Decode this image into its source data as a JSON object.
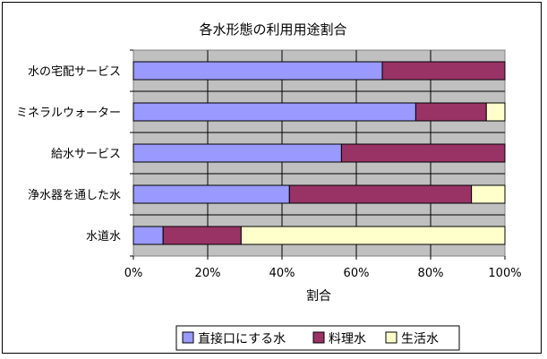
{
  "chart_data": {
    "type": "bar",
    "orientation": "horizontal",
    "stacked": "percent",
    "title": "各水形態の利用用途割合",
    "xlabel": "割合",
    "ylabel": "",
    "categories": [
      "水の宅配サービス",
      "ミネラルウォーター",
      "給水サービス",
      "浄水器を通した水",
      "水道水"
    ],
    "series": [
      {
        "name": "直接口にする水",
        "color": "#9999ff",
        "values": [
          67,
          76,
          56,
          42,
          8
        ]
      },
      {
        "name": "料理水",
        "color": "#993366",
        "values": [
          33,
          19,
          44,
          49,
          21
        ]
      },
      {
        "name": "生活水",
        "color": "#ffffcc",
        "values": [
          0,
          5,
          0,
          9,
          71
        ]
      }
    ],
    "xlim": [
      0,
      100
    ],
    "xticks": [
      "0%",
      "20%",
      "40%",
      "60%",
      "80%",
      "100%"
    ],
    "grid": true,
    "plot_background": "#c0c0c0",
    "legend_position": "bottom"
  }
}
